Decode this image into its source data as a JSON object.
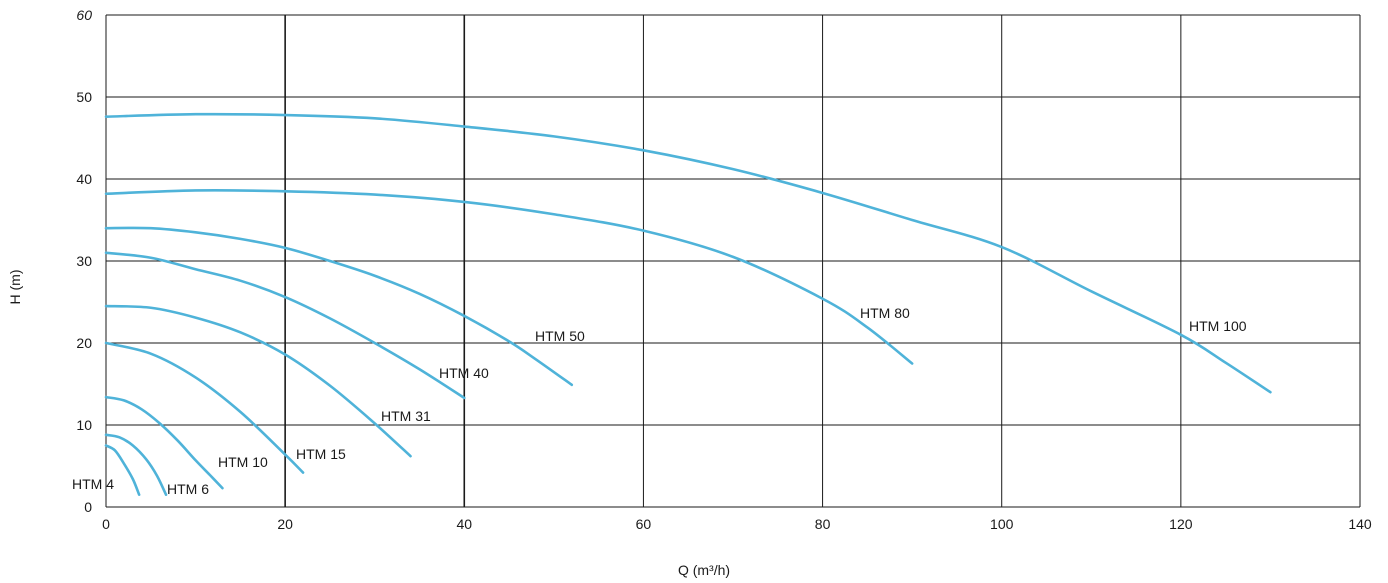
{
  "chart_data": {
    "type": "line",
    "title": "",
    "xlabel": "Q (m³/h)",
    "ylabel": "H (m)",
    "xlim": [
      0,
      140
    ],
    "ylim": [
      0,
      60
    ],
    "x_ticks": [
      0,
      20,
      40,
      60,
      80,
      100,
      120,
      140
    ],
    "y_ticks": [
      0,
      10,
      20,
      30,
      40,
      50,
      60
    ],
    "grid": true,
    "line_color": "#4fb3d9",
    "grid_color": "#1a1a1a",
    "series": [
      {
        "name": "HTM 4",
        "x": [
          0,
          1,
          2,
          3,
          3.7
        ],
        "y": [
          7.5,
          6.9,
          5.3,
          3.4,
          1.5
        ]
      },
      {
        "name": "HTM 6",
        "x": [
          0,
          1.5,
          3,
          4.5,
          5.7,
          6.7
        ],
        "y": [
          8.8,
          8.5,
          7.5,
          5.8,
          3.8,
          1.5
        ]
      },
      {
        "name": "HTM 10",
        "x": [
          0,
          2,
          4,
          6,
          8,
          10,
          11.6,
          13
        ],
        "y": [
          13.4,
          13.0,
          11.9,
          10.2,
          8.1,
          5.7,
          3.9,
          2.3
        ]
      },
      {
        "name": "HTM 15",
        "x": [
          0,
          5,
          10,
          15,
          20,
          22
        ],
        "y": [
          20.0,
          18.7,
          15.8,
          11.6,
          6.4,
          4.2
        ]
      },
      {
        "name": "HTM 31",
        "x": [
          0,
          5,
          10,
          15,
          20,
          25,
          30,
          34
        ],
        "y": [
          24.5,
          24.3,
          23.1,
          21.3,
          18.6,
          14.8,
          10.2,
          6.2
        ]
      },
      {
        "name": "HTM 40",
        "x": [
          0,
          5,
          10,
          15,
          20,
          25,
          30,
          35,
          40
        ],
        "y": [
          31.0,
          30.4,
          29.0,
          27.6,
          25.6,
          23.0,
          20.0,
          16.8,
          13.3
        ]
      },
      {
        "name": "HTM 50",
        "x": [
          0,
          5,
          10,
          15,
          20,
          25,
          30,
          35,
          40,
          45,
          48,
          52
        ],
        "y": [
          34.0,
          34.0,
          33.5,
          32.7,
          31.6,
          30.0,
          28.2,
          26.0,
          23.3,
          20.2,
          18.0,
          14.9
        ]
      },
      {
        "name": "HTM 80",
        "x": [
          0,
          10,
          20,
          30,
          40,
          50,
          60,
          70,
          80,
          85,
          90
        ],
        "y": [
          38.2,
          38.6,
          38.5,
          38.1,
          37.2,
          35.7,
          33.7,
          30.5,
          25.4,
          21.9,
          17.5
        ]
      },
      {
        "name": "HTM 100",
        "x": [
          0,
          10,
          20,
          30,
          40,
          50,
          60,
          70,
          80,
          90,
          100,
          110,
          120,
          125,
          130
        ],
        "y": [
          47.6,
          47.9,
          47.8,
          47.4,
          46.4,
          45.2,
          43.5,
          41.2,
          38.3,
          35.0,
          31.7,
          26.3,
          21.0,
          17.6,
          14.0
        ]
      }
    ]
  }
}
